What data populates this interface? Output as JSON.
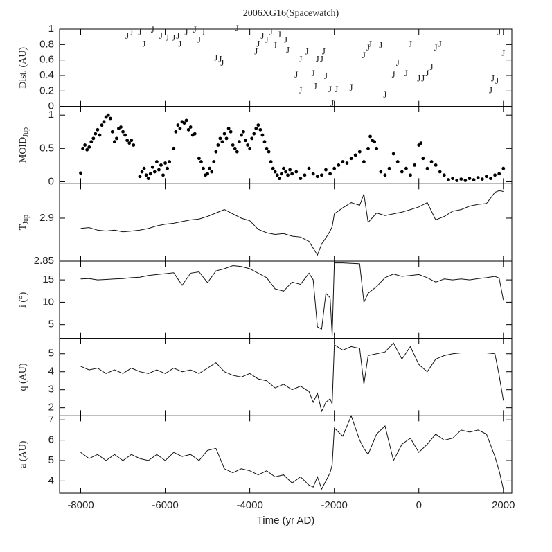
{
  "chart_data": [
    {
      "type": "scatter",
      "title": "2006XG16(Spacewatch)",
      "ylabel": "Dist. (AU)",
      "marker": "J",
      "color": "#222",
      "xlim": [
        -8500,
        2200
      ],
      "ylim": [
        0,
        1
      ],
      "yticks": [
        0,
        0.2,
        0.4,
        0.6,
        0.8,
        1
      ],
      "x": [
        -6900,
        -6800,
        -6600,
        -6500,
        -6300,
        -6100,
        -5950,
        -5800,
        -5700,
        -5650,
        -5500,
        -5300,
        -5200,
        -5100,
        -4800,
        -4700,
        -4650,
        -4300,
        -3850,
        -3800,
        -3700,
        -3600,
        -3500,
        -3400,
        -3300,
        -3150,
        -3100,
        -2900,
        -2800,
        -2800,
        -2650,
        -2500,
        -2450,
        -2400,
        -2300,
        -2250,
        -2200,
        -2100,
        -2050,
        -1950,
        -1600,
        -1300,
        -1200,
        -1150,
        -900,
        -800,
        -600,
        -500,
        -300,
        -200,
        0,
        100,
        200,
        300,
        400,
        500,
        1700,
        1750,
        1850,
        1900,
        2000
      ],
      "values": [
        0.9,
        0.95,
        0.95,
        0.8,
        0.98,
        0.9,
        0.88,
        0.88,
        0.9,
        0.8,
        0.95,
        0.98,
        0.85,
        0.95,
        0.62,
        0.6,
        0.55,
        1.0,
        0.7,
        0.8,
        0.9,
        0.85,
        0.95,
        0.78,
        0.92,
        0.85,
        0.72,
        0.4,
        0.2,
        0.6,
        0.7,
        0.42,
        0.25,
        0.6,
        0.6,
        0.7,
        0.38,
        0.21,
        0.03,
        0.21,
        0.23,
        0.65,
        0.75,
        0.8,
        0.78,
        0.14,
        0.4,
        0.55,
        0.42,
        0.8,
        0.35,
        0.35,
        0.42,
        0.5,
        0.75,
        0.8,
        0.2,
        0.35,
        0.32,
        0.95,
        0.68
      ]
    },
    {
      "type": "scatter",
      "ylabel": "MOID",
      "ylabel_sub": "Jup",
      "color": "#000",
      "xlim": [
        -8500,
        2200
      ],
      "ylim": [
        -0.03,
        1.13
      ],
      "yticks": [
        0,
        0.5,
        1
      ],
      "x": [
        -8000,
        -7950,
        -7900,
        -7850,
        -7800,
        -7750,
        -7700,
        -7650,
        -7600,
        -7550,
        -7500,
        -7450,
        -7400,
        -7350,
        -7300,
        -7250,
        -7200,
        -7150,
        -7100,
        -7050,
        -7000,
        -6950,
        -6900,
        -6850,
        -6800,
        -6750,
        -6600,
        -6550,
        -6500,
        -6450,
        -6400,
        -6350,
        -6300,
        -6250,
        -6200,
        -6150,
        -6100,
        -6050,
        -6000,
        -5950,
        -5900,
        -5800,
        -5750,
        -5700,
        -5650,
        -5600,
        -5550,
        -5500,
        -5450,
        -5400,
        -5350,
        -5300,
        -5200,
        -5150,
        -5100,
        -5050,
        -5000,
        -4950,
        -4900,
        -4850,
        -4800,
        -4750,
        -4700,
        -4650,
        -4600,
        -4550,
        -4500,
        -4450,
        -4400,
        -4350,
        -4300,
        -4250,
        -4200,
        -4150,
        -4100,
        -4050,
        -4000,
        -3950,
        -3900,
        -3850,
        -3800,
        -3750,
        -3700,
        -3650,
        -3600,
        -3550,
        -3500,
        -3450,
        -3400,
        -3350,
        -3300,
        -3250,
        -3200,
        -3150,
        -3100,
        -3050,
        -3000,
        -2900,
        -2800,
        -2700,
        -2600,
        -2500,
        -2400,
        -2300,
        -2200,
        -2100,
        -2000,
        -1900,
        -1800,
        -1700,
        -1600,
        -1500,
        -1400,
        -1300,
        -1200,
        -1150,
        -1100,
        -1050,
        -1000,
        -900,
        -800,
        -700,
        -600,
        -500,
        -400,
        -300,
        -200,
        -100,
        0,
        50,
        100,
        200,
        300,
        400,
        500,
        600,
        700,
        800,
        900,
        1000,
        1100,
        1200,
        1300,
        1400,
        1500,
        1600,
        1700,
        1800,
        1900,
        2000
      ],
      "values": [
        0.13,
        0.5,
        0.55,
        0.48,
        0.52,
        0.6,
        0.65,
        0.72,
        0.78,
        0.7,
        0.85,
        0.9,
        0.97,
        1.0,
        0.95,
        0.75,
        0.6,
        0.65,
        0.8,
        0.82,
        0.75,
        0.7,
        0.62,
        0.58,
        0.62,
        0.55,
        0.08,
        0.15,
        0.2,
        0.1,
        0.05,
        0.12,
        0.22,
        0.15,
        0.3,
        0.18,
        0.25,
        0.1,
        0.28,
        0.2,
        0.3,
        0.5,
        0.75,
        0.85,
        0.8,
        0.9,
        0.88,
        0.92,
        0.78,
        0.82,
        0.7,
        0.72,
        0.35,
        0.3,
        0.2,
        0.1,
        0.12,
        0.2,
        0.15,
        0.3,
        0.45,
        0.55,
        0.65,
        0.6,
        0.72,
        0.65,
        0.8,
        0.75,
        0.55,
        0.5,
        0.45,
        0.6,
        0.7,
        0.75,
        0.62,
        0.55,
        0.5,
        0.65,
        0.72,
        0.8,
        0.85,
        0.78,
        0.7,
        0.6,
        0.5,
        0.45,
        0.3,
        0.2,
        0.15,
        0.1,
        0.05,
        0.12,
        0.2,
        0.15,
        0.1,
        0.18,
        0.12,
        0.15,
        0.05,
        0.1,
        0.2,
        0.12,
        0.08,
        0.1,
        0.18,
        0.12,
        0.2,
        0.25,
        0.3,
        0.28,
        0.35,
        0.4,
        0.45,
        0.3,
        0.5,
        0.68,
        0.62,
        0.6,
        0.5,
        0.15,
        0.1,
        0.2,
        0.42,
        0.3,
        0.15,
        0.2,
        0.1,
        0.25,
        0.55,
        0.58,
        0.35,
        0.2,
        0.3,
        0.25,
        0.15,
        0.1,
        0.03,
        0.05,
        0.02,
        0.04,
        0.02,
        0.05,
        0.03,
        0.06,
        0.04,
        0.08,
        0.05,
        0.1,
        0.12,
        0.2
      ]
    },
    {
      "type": "line",
      "ylabel": "T",
      "ylabel_sub": "Jup",
      "color": "#111",
      "xlim": [
        -8500,
        2200
      ],
      "ylim": [
        2.85,
        2.94
      ],
      "yticks": [
        2.85,
        2.9
      ],
      "x": [
        -8000,
        -7800,
        -7600,
        -7400,
        -7200,
        -7000,
        -6800,
        -6600,
        -6400,
        -6200,
        -6000,
        -5800,
        -5600,
        -5400,
        -5200,
        -5000,
        -4800,
        -4600,
        -4400,
        -4200,
        -4000,
        -3800,
        -3600,
        -3400,
        -3200,
        -3000,
        -2800,
        -2600,
        -2500,
        -2400,
        -2300,
        -2200,
        -2100,
        -2050,
        -2000,
        -1800,
        -1600,
        -1400,
        -1300,
        -1200,
        -1000,
        -800,
        -600,
        -400,
        -200,
        0,
        200,
        400,
        600,
        800,
        1000,
        1200,
        1400,
        1600,
        1800,
        1900,
        2000
      ],
      "values": [
        2.888,
        2.889,
        2.886,
        2.885,
        2.886,
        2.884,
        2.885,
        2.886,
        2.888,
        2.891,
        2.893,
        2.894,
        2.896,
        2.898,
        2.899,
        2.902,
        2.906,
        2.91,
        2.905,
        2.9,
        2.897,
        2.887,
        2.883,
        2.881,
        2.882,
        2.879,
        2.878,
        2.873,
        2.865,
        2.857,
        2.87,
        2.877,
        2.885,
        2.89,
        2.905,
        2.912,
        2.918,
        2.915,
        2.928,
        2.895,
        2.906,
        2.903,
        2.905,
        2.907,
        2.91,
        2.913,
        2.918,
        2.898,
        2.902,
        2.908,
        2.91,
        2.914,
        2.916,
        2.917,
        2.93,
        2.932,
        2.931
      ]
    },
    {
      "type": "line",
      "ylabel": "i (°)",
      "color": "#111",
      "xlim": [
        -8500,
        2200
      ],
      "ylim": [
        1.9,
        19.2
      ],
      "yticks": [
        5,
        10,
        15
      ],
      "x": [
        -8000,
        -7800,
        -7600,
        -7400,
        -7200,
        -7000,
        -6800,
        -6600,
        -6400,
        -6200,
        -6000,
        -5800,
        -5600,
        -5400,
        -5200,
        -5000,
        -4800,
        -4600,
        -4400,
        -4200,
        -4000,
        -3800,
        -3600,
        -3400,
        -3200,
        -3000,
        -2800,
        -2600,
        -2500,
        -2400,
        -2300,
        -2200,
        -2100,
        -2050,
        -2000,
        -1800,
        -1600,
        -1400,
        -1300,
        -1200,
        -1000,
        -800,
        -600,
        -400,
        -200,
        0,
        200,
        400,
        600,
        800,
        1000,
        1200,
        1400,
        1600,
        1800,
        1900,
        2000
      ],
      "values": [
        15.2,
        15.3,
        15,
        15.1,
        15.2,
        15.3,
        15.5,
        15.6,
        16,
        16.2,
        16.4,
        16.6,
        13.8,
        16.5,
        16.8,
        14.4,
        17,
        17.5,
        18.2,
        18,
        17.5,
        16.5,
        15.5,
        13,
        12.5,
        14.5,
        14,
        16.5,
        15,
        4.5,
        4,
        12,
        11,
        2.5,
        18.8,
        18.8,
        18.7,
        18.6,
        10,
        12,
        13.5,
        15.5,
        16.3,
        15.8,
        16,
        16.2,
        15.5,
        14.5,
        15.2,
        15,
        15.2,
        15,
        15.3,
        15.5,
        15.8,
        15.4,
        10.5
      ]
    },
    {
      "type": "line",
      "ylabel": "q (AU)",
      "color": "#111",
      "xlim": [
        -8500,
        2200
      ],
      "ylim": [
        1.55,
        5.85
      ],
      "yticks": [
        2,
        3,
        4,
        5
      ],
      "x": [
        -8000,
        -7800,
        -7600,
        -7400,
        -7200,
        -7000,
        -6800,
        -6600,
        -6400,
        -6200,
        -6000,
        -5800,
        -5600,
        -5400,
        -5200,
        -5000,
        -4800,
        -4600,
        -4400,
        -4200,
        -4000,
        -3800,
        -3600,
        -3400,
        -3200,
        -3000,
        -2800,
        -2600,
        -2500,
        -2400,
        -2300,
        -2200,
        -2100,
        -2050,
        -2000,
        -1800,
        -1600,
        -1400,
        -1300,
        -1200,
        -1000,
        -800,
        -600,
        -400,
        -200,
        0,
        200,
        400,
        600,
        800,
        1000,
        1200,
        1400,
        1600,
        1800,
        1900,
        2000
      ],
      "values": [
        4.3,
        4.1,
        4.2,
        3.9,
        4.1,
        3.9,
        4.2,
        4.0,
        3.9,
        4.1,
        3.9,
        4.2,
        4.0,
        4.1,
        3.9,
        4.2,
        4.5,
        4.0,
        3.8,
        3.7,
        3.9,
        3.6,
        3.5,
        3.1,
        3.3,
        3.0,
        3.2,
        2.9,
        2.3,
        2.8,
        1.8,
        2.3,
        2.5,
        2.2,
        5.5,
        5.2,
        5.4,
        5.3,
        3.3,
        4.9,
        5.0,
        5.1,
        5.6,
        4.7,
        5.4,
        4.4,
        4.0,
        4.7,
        4.9,
        5.0,
        5.05,
        5.05,
        5.05,
        5.05,
        5.0,
        3.8,
        2.4
      ]
    },
    {
      "type": "line",
      "ylabel": "a (AU)",
      "xlabel": "Time (yr AD)",
      "color": "#111",
      "xlim": [
        -8500,
        2200
      ],
      "ylim": [
        3.4,
        7.2
      ],
      "yticks": [
        4,
        5,
        6,
        7
      ],
      "xticks": [
        -8000,
        -6000,
        -4000,
        -2000,
        0,
        2000
      ],
      "x": [
        -8000,
        -7800,
        -7600,
        -7400,
        -7200,
        -7000,
        -6800,
        -6600,
        -6400,
        -6200,
        -6000,
        -5800,
        -5600,
        -5400,
        -5200,
        -5000,
        -4800,
        -4600,
        -4400,
        -4200,
        -4000,
        -3800,
        -3600,
        -3400,
        -3200,
        -3000,
        -2800,
        -2600,
        -2500,
        -2400,
        -2300,
        -2200,
        -2100,
        -2050,
        -2000,
        -1800,
        -1600,
        -1400,
        -1300,
        -1200,
        -1000,
        -800,
        -600,
        -400,
        -200,
        0,
        200,
        400,
        600,
        800,
        1000,
        1200,
        1400,
        1600,
        1800,
        1900,
        2000
      ],
      "values": [
        5.4,
        5.1,
        5.3,
        5.0,
        5.3,
        5.0,
        5.3,
        5.1,
        5.0,
        5.3,
        5.0,
        5.4,
        5.2,
        5.3,
        5.0,
        5.5,
        5.6,
        4.6,
        4.4,
        4.6,
        4.5,
        4.3,
        4.5,
        4.2,
        4.3,
        3.9,
        4.2,
        3.8,
        3.7,
        4.2,
        3.6,
        4.0,
        4.4,
        4.8,
        6.6,
        6.2,
        7.2,
        6.0,
        5.6,
        5.3,
        6.3,
        6.7,
        5.0,
        5.8,
        6.1,
        5.4,
        5.8,
        6.3,
        6.0,
        6.1,
        6.5,
        6.4,
        6.5,
        6.3,
        5.2,
        4.5,
        3.6
      ]
    }
  ]
}
